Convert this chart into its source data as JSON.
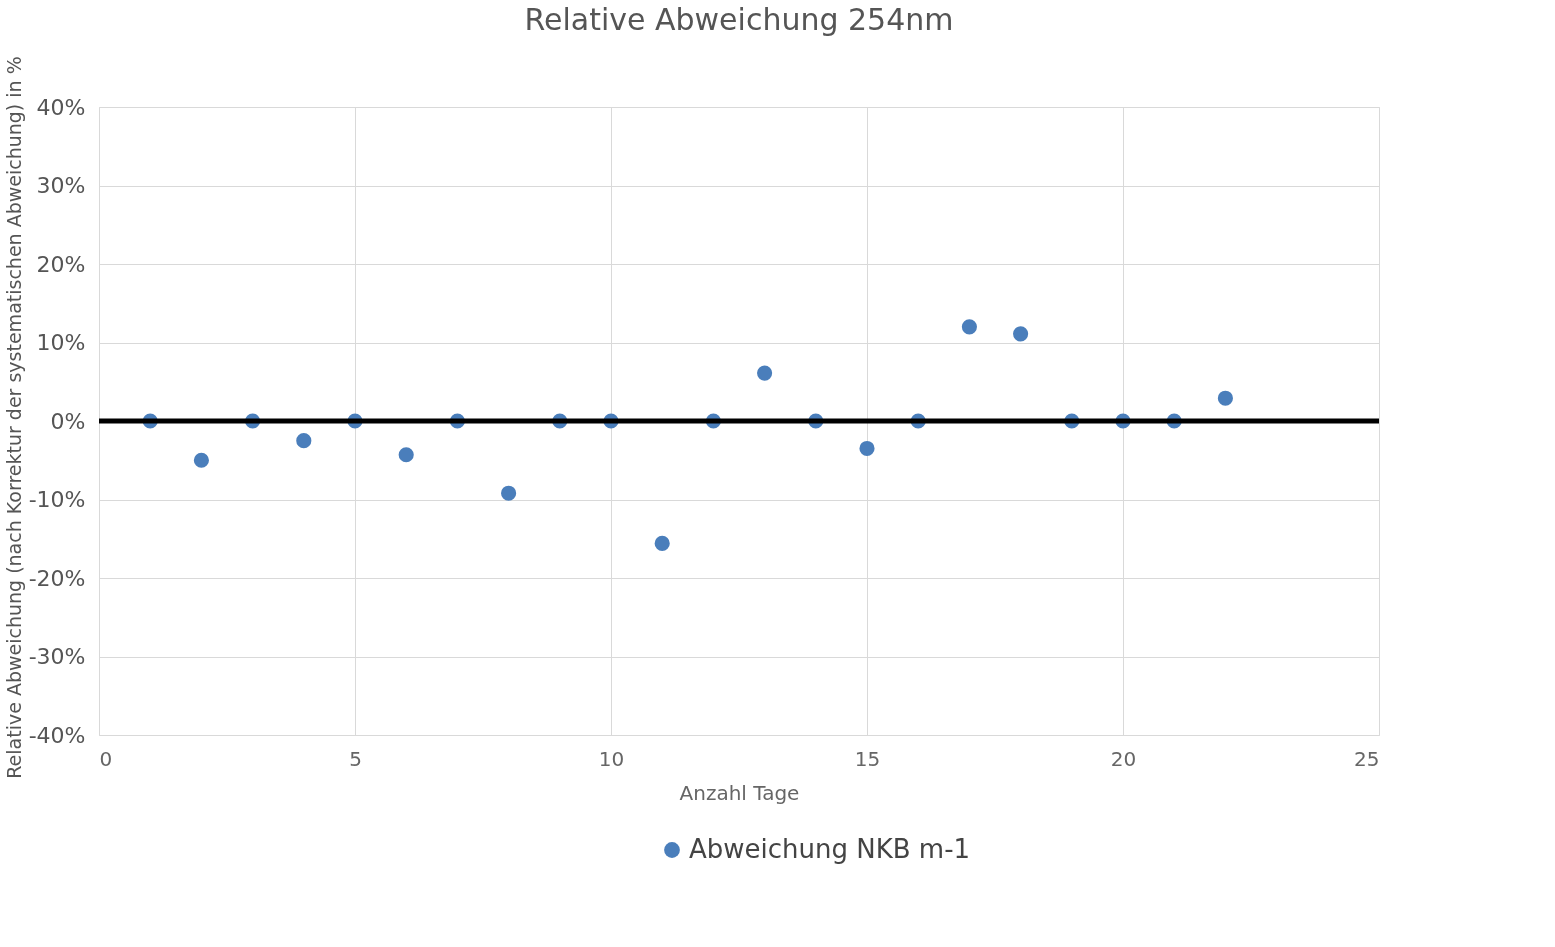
{
  "chart_data": {
    "type": "scatter",
    "title": "Relative Abweichung 254nm",
    "xlabel": "Anzahl Tage",
    "ylabel": "Relative Abweichung (nach Korrektur der systematischen Abweichung) in %",
    "x": [
      1,
      2,
      3,
      4,
      5,
      6,
      7,
      8,
      9,
      10,
      11,
      12,
      13,
      14,
      15,
      16,
      17,
      18,
      19,
      20,
      21,
      22
    ],
    "series": [
      {
        "name": "Abweichung NKB m-1",
        "color": "#4a7ebb",
        "values": [
          0,
          -5,
          0,
          -2.5,
          0,
          -4.3,
          0,
          -9.2,
          0,
          0,
          -15.6,
          0,
          6.1,
          0,
          -3.5,
          0,
          12,
          11.1,
          0,
          0,
          0,
          2.9
        ]
      }
    ],
    "xlim": [
      0,
      25
    ],
    "xticks": [
      0,
      5,
      10,
      15,
      20,
      25
    ],
    "ylim": [
      -40,
      40
    ],
    "yticks": [
      {
        "value": -40,
        "label": "-40%"
      },
      {
        "value": -30,
        "label": "-30%"
      },
      {
        "value": -20,
        "label": "-20%"
      },
      {
        "value": -10,
        "label": "-10%"
      },
      {
        "value": 0,
        "label": "0%"
      },
      {
        "value": 10,
        "label": "10%"
      },
      {
        "value": 20,
        "label": "20%"
      },
      {
        "value": 30,
        "label": "30%"
      },
      {
        "value": 40,
        "label": "40%"
      }
    ],
    "ref_lines": [
      {
        "axis": "y",
        "value": 0,
        "color": "#000000"
      }
    ],
    "grid": true,
    "legend": "bottom",
    "marker": "circle"
  }
}
